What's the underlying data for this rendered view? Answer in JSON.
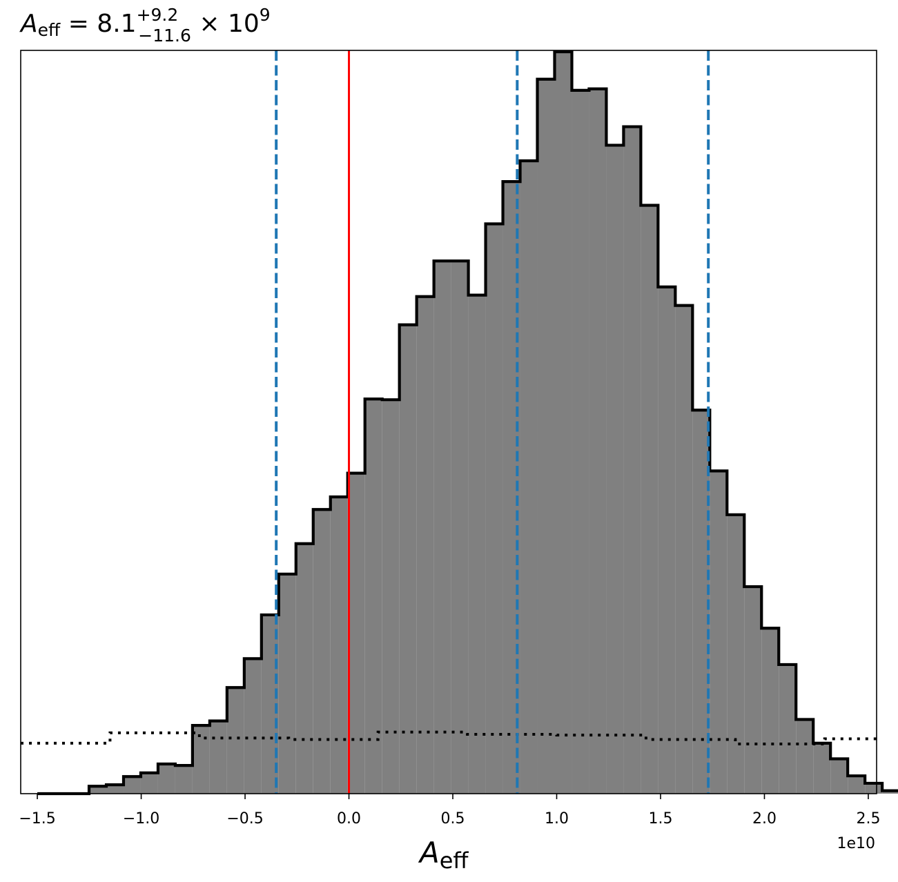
{
  "chart_data": {
    "type": "histogram",
    "title": {
      "symbol": "A",
      "symbol_sub": "eff",
      "equals": " = 8.1",
      "upper_err": "+9.2",
      "lower_err": "−11.6",
      "times": " × 10",
      "exponent": "9"
    },
    "xlabel": {
      "symbol": "A",
      "sub": "eff"
    },
    "x_offset_label": "1e10",
    "xlim": [
      -15800000000.0,
      25400000000.0
    ],
    "ylim": [
      0,
      1.0
    ],
    "x_ticks": [
      {
        "value": -15000000000.0,
        "label": "−1.5"
      },
      {
        "value": -10000000000.0,
        "label": "−1.0"
      },
      {
        "value": -5000000000.0,
        "label": "−0.5"
      },
      {
        "value": 0.0,
        "label": "0.0"
      },
      {
        "value": 5000000000.0,
        "label": "0.5"
      },
      {
        "value": 10000000000.0,
        "label": "1.0"
      },
      {
        "value": 15000000000.0,
        "label": "1.5"
      },
      {
        "value": 20000000000.0,
        "label": "2.0"
      },
      {
        "value": 25000000000.0,
        "label": "2.5"
      }
    ],
    "posterior_hist": {
      "bin_start": -15000000000.0,
      "bin_width": 830000000.0,
      "heights": [
        0.0,
        0.0,
        0.0,
        0.01,
        0.012,
        0.023,
        0.028,
        0.04,
        0.038,
        0.092,
        0.098,
        0.143,
        0.182,
        0.241,
        0.296,
        0.337,
        0.383,
        0.4,
        0.432,
        0.532,
        0.531,
        0.632,
        0.67,
        0.718,
        0.718,
        0.672,
        0.768,
        0.825,
        0.853,
        0.963,
        1.0,
        0.948,
        0.95,
        0.874,
        0.899,
        0.793,
        0.683,
        0.658,
        0.517,
        0.435,
        0.376,
        0.279,
        0.223,
        0.174,
        0.1,
        0.068,
        0.047,
        0.024,
        0.014,
        0.004
      ],
      "fill_color": "#808080",
      "edge_color": "#000000"
    },
    "prior_hist": {
      "bin_start": -15800000000.0,
      "bin_width": 4300000000.0,
      "heights": [
        0.068,
        0.082,
        0.075,
        0.073,
        0.083,
        0.08,
        0.079,
        0.073,
        0.067,
        0.074
      ],
      "line_style": "dotted",
      "color": "#000000"
    },
    "vlines": [
      {
        "x": 0.0,
        "color": "#ff0000",
        "style": "solid"
      },
      {
        "x": -3500000000.0,
        "color": "#1f77b4",
        "style": "dashed"
      },
      {
        "x": 8100000000.0,
        "color": "#1f77b4",
        "style": "dashed"
      },
      {
        "x": 17300000000.0,
        "color": "#1f77b4",
        "style": "dashed"
      }
    ],
    "grid": false,
    "legend": "none"
  }
}
